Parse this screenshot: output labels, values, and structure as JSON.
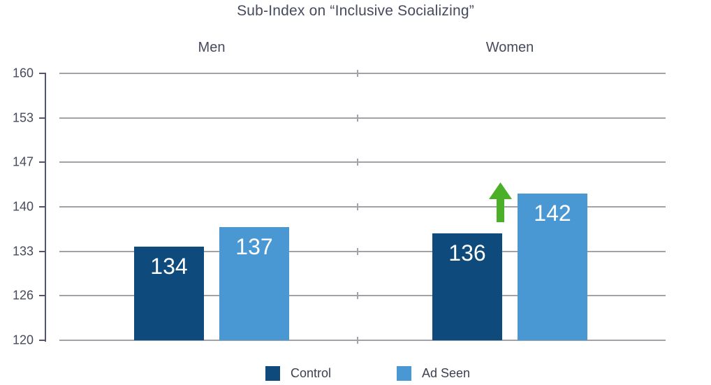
{
  "chart_data": {
    "type": "bar",
    "title": "Sub-Index on “Inclusive Socializing”",
    "categories": [
      "Men",
      "Women"
    ],
    "series": [
      {
        "name": "Control",
        "values": [
          134,
          136
        ],
        "color": "#0e4a7b"
      },
      {
        "name": "Ad Seen",
        "values": [
          137,
          142
        ],
        "color": "#4a98d3"
      }
    ],
    "ylim": [
      120,
      160
    ],
    "y_tick_labels": [
      "160",
      "153",
      "147",
      "140",
      "133",
      "126",
      "120"
    ],
    "grid": true,
    "legend_position": "bottom",
    "legend_labels": [
      "Control",
      "Ad Seen"
    ],
    "annotation": {
      "type": "arrow-up",
      "color": "#4caf28",
      "meaning": "increase for Women Ad Seen"
    }
  },
  "colors": {
    "control_bar": "#0e4a7b",
    "ad_seen_bar": "#4a98d3",
    "arrow_green": "#4caf28",
    "gridline": "#a1a3a8",
    "axis": "#53576a",
    "text": "#474a5c",
    "bar_value_text": "#ffffff"
  }
}
